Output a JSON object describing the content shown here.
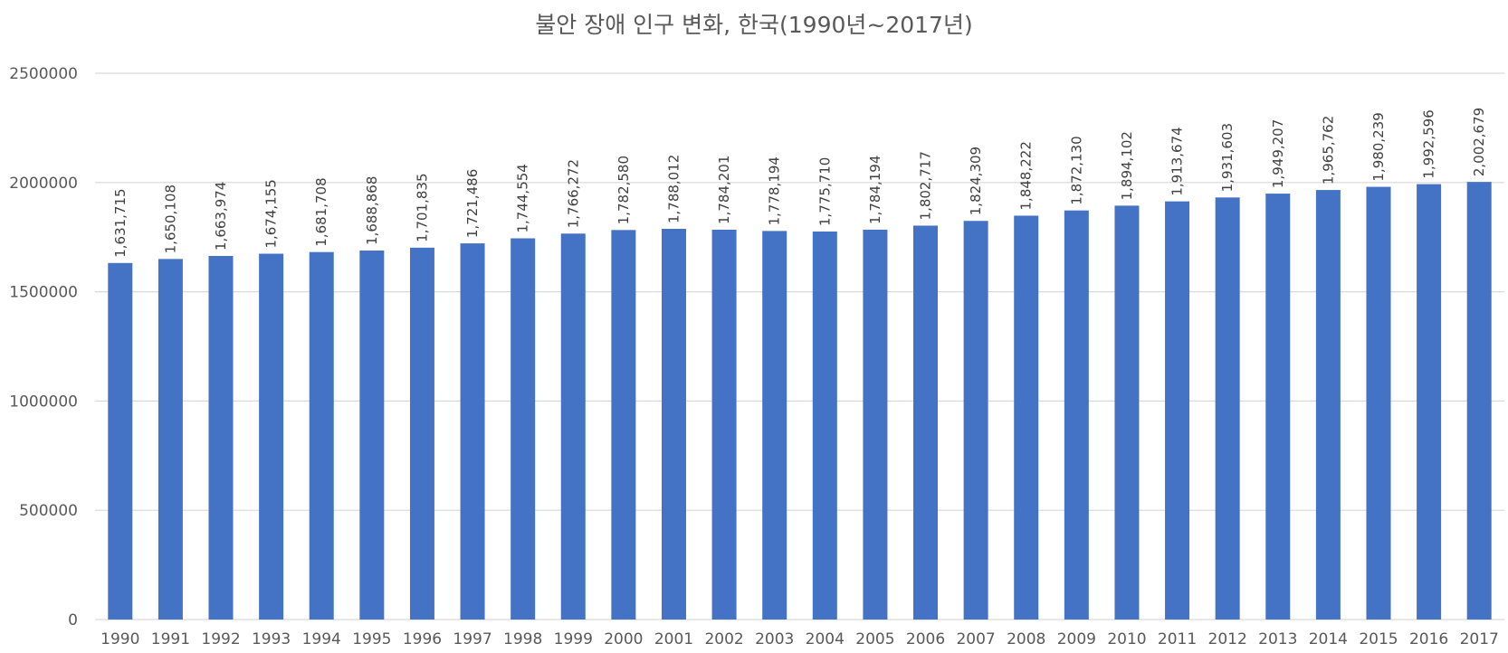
{
  "chart_data": {
    "type": "bar",
    "title": "불안 장애 인구 변화, 한국(1990년~2017년)",
    "xlabel": "",
    "ylabel": "",
    "categories": [
      "1990",
      "1991",
      "1992",
      "1993",
      "1994",
      "1995",
      "1996",
      "1997",
      "1998",
      "1999",
      "2000",
      "2001",
      "2002",
      "2003",
      "2004",
      "2005",
      "2006",
      "2007",
      "2008",
      "2009",
      "2010",
      "2011",
      "2012",
      "2013",
      "2014",
      "2015",
      "2016",
      "2017"
    ],
    "values": [
      1631715,
      1650108,
      1663974,
      1674155,
      1681708,
      1688868,
      1701835,
      1721486,
      1744554,
      1766272,
      1782580,
      1788012,
      1784201,
      1778194,
      1775710,
      1784194,
      1802717,
      1824309,
      1848222,
      1872130,
      1894102,
      1913674,
      1931603,
      1949207,
      1965762,
      1980239,
      1992596,
      2002679
    ],
    "data_labels": [
      "1,631,715",
      "1,650,108",
      "1,663,974",
      "1,674,155",
      "1,681,708",
      "1,688,868",
      "1,701,835",
      "1,721,486",
      "1,744,554",
      "1,766,272",
      "1,782,580",
      "1,788,012",
      "1,784,201",
      "1,778,194",
      "1,775,710",
      "1,784,194",
      "1,802,717",
      "1,824,309",
      "1,848,222",
      "1,872,130",
      "1,894,102",
      "1,913,674",
      "1,931,603",
      "1,949,207",
      "1,965,762",
      "1,980,239",
      "1,992,596",
      "2,002,679"
    ],
    "y_ticks": [
      0,
      500000,
      1000000,
      1500000,
      2000000,
      2500000
    ],
    "y_tick_labels": [
      "0",
      "500000",
      "1000000",
      "1500000",
      "2000000",
      "2500000"
    ],
    "ylim": [
      0,
      2500000
    ],
    "grid": true,
    "legend": "none",
    "bar_color": "#4472C4",
    "grid_color": "#D9D9D9",
    "text_color": "#595959"
  }
}
